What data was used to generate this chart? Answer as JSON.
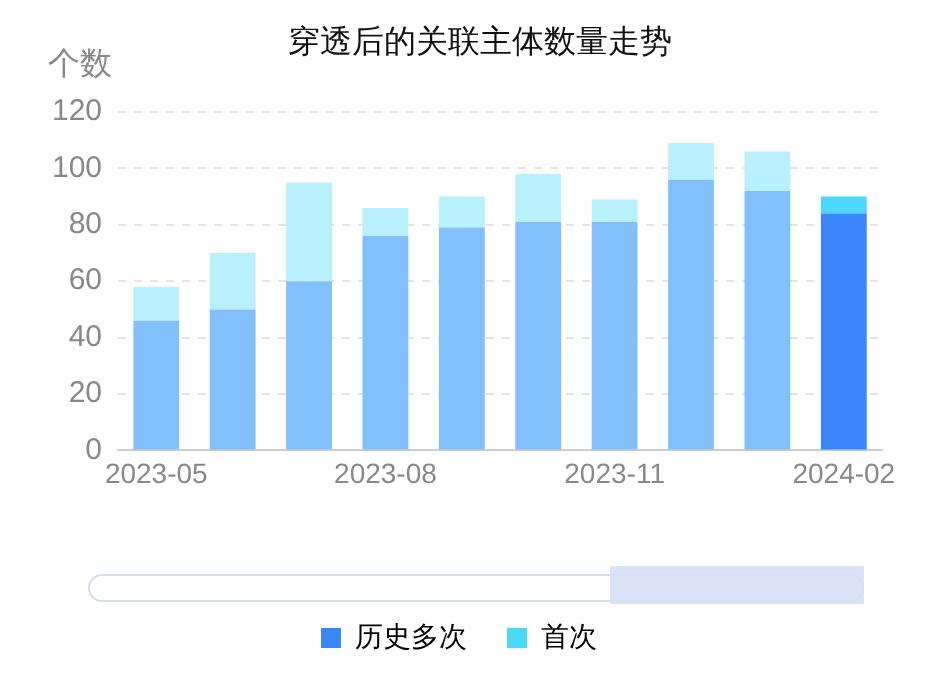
{
  "chart_data": {
    "type": "bar",
    "title": "穿透后的关联主体数量走势",
    "ylabel": "个数",
    "categories": [
      "2023-05",
      null,
      null,
      "2023-08",
      null,
      null,
      "2023-11",
      null,
      null,
      "2024-02"
    ],
    "stacked": true,
    "ylim": [
      0,
      120
    ],
    "yticks": [
      0,
      20,
      40,
      60,
      80,
      100,
      120
    ],
    "grid": "y",
    "legend": "bottom",
    "series": [
      {
        "name": "历史多次",
        "color": "#3a86fb",
        "colors": [
          "#82c0fb",
          "#82c0fb",
          "#82c0fb",
          "#82c0fb",
          "#82c0fb",
          "#82c0fb",
          "#82c0fb",
          "#82c0fb",
          "#82c0fb",
          "#3a86fb"
        ],
        "values": [
          46,
          50,
          60,
          76,
          79,
          81,
          81,
          96,
          92,
          84
        ]
      },
      {
        "name": "首次",
        "color": "#4bd8fc",
        "colors": [
          "#b8f0fe",
          "#b8f0fe",
          "#b8f0fe",
          "#b8f0fe",
          "#b8f0fe",
          "#b8f0fe",
          "#b8f0fe",
          "#b8f0fe",
          "#b8f0fe",
          "#4bd8fc"
        ],
        "values": [
          12,
          20,
          35,
          10,
          11,
          17,
          8,
          13,
          14,
          6
        ]
      }
    ]
  }
}
